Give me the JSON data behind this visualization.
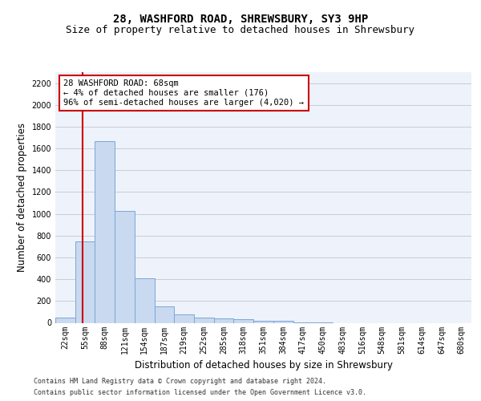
{
  "title1": "28, WASHFORD ROAD, SHREWSBURY, SY3 9HP",
  "title2": "Size of property relative to detached houses in Shrewsbury",
  "xlabel": "Distribution of detached houses by size in Shrewsbury",
  "ylabel": "Number of detached properties",
  "bin_labels": [
    "22sqm",
    "55sqm",
    "88sqm",
    "121sqm",
    "154sqm",
    "187sqm",
    "219sqm",
    "252sqm",
    "285sqm",
    "318sqm",
    "351sqm",
    "384sqm",
    "417sqm",
    "450sqm",
    "483sqm",
    "516sqm",
    "548sqm",
    "581sqm",
    "614sqm",
    "647sqm",
    "680sqm"
  ],
  "bar_values": [
    50,
    750,
    1670,
    1030,
    405,
    150,
    80,
    45,
    40,
    30,
    20,
    15,
    5,
    2,
    0,
    0,
    0,
    0,
    0,
    0,
    0
  ],
  "bar_color": "#c9d9f0",
  "bar_edgecolor": "#7ba7d4",
  "red_line_x": 1.39,
  "annotation_text": "28 WASHFORD ROAD: 68sqm\n← 4% of detached houses are smaller (176)\n96% of semi-detached houses are larger (4,020) →",
  "annotation_box_color": "#ffffff",
  "annotation_box_edge": "#cc0000",
  "red_line_color": "#cc0000",
  "ylim": [
    0,
    2300
  ],
  "yticks": [
    0,
    200,
    400,
    600,
    800,
    1000,
    1200,
    1400,
    1600,
    1800,
    2000,
    2200
  ],
  "grid_color": "#cccccc",
  "bg_color": "#eef2fb",
  "footer1": "Contains HM Land Registry data © Crown copyright and database right 2024.",
  "footer2": "Contains public sector information licensed under the Open Government Licence v3.0.",
  "title1_fontsize": 10,
  "title2_fontsize": 9,
  "tick_fontsize": 7,
  "ylabel_fontsize": 8.5,
  "xlabel_fontsize": 8.5,
  "footer_fontsize": 6,
  "annotation_fontsize": 7.5
}
